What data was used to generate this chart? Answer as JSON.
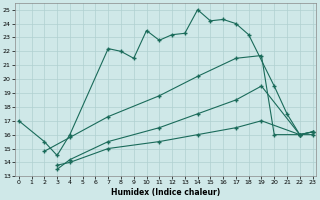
{
  "xlabel": "Humidex (Indice chaleur)",
  "bg_color": "#cfe8e8",
  "grid_color": "#b0d0d0",
  "line_color": "#1a6b5a",
  "line1_x": [
    0,
    2,
    3,
    4,
    7,
    8,
    9,
    10,
    11,
    12,
    13,
    14,
    15,
    16,
    17,
    18,
    20,
    21,
    22,
    23
  ],
  "line1_y": [
    17.0,
    15.5,
    14.5,
    16.0,
    22.2,
    22.0,
    21.5,
    23.5,
    22.8,
    23.2,
    23.3,
    25.0,
    24.2,
    24.3,
    24.0,
    23.2,
    19.5,
    17.5,
    16.0,
    16.2
  ],
  "line2_x": [
    2,
    4,
    7,
    11,
    14,
    17,
    19,
    20,
    22,
    23
  ],
  "line2_y": [
    14.8,
    15.8,
    17.3,
    18.8,
    20.2,
    21.5,
    21.7,
    16.0,
    16.0,
    16.2
  ],
  "line3_x": [
    3,
    4,
    7,
    11,
    14,
    17,
    19,
    22,
    23
  ],
  "line3_y": [
    13.5,
    14.2,
    15.5,
    16.5,
    17.5,
    18.5,
    19.5,
    16.0,
    16.0
  ],
  "line4_x": [
    3,
    4,
    7,
    11,
    14,
    17,
    19,
    22,
    23
  ],
  "line4_y": [
    13.8,
    14.0,
    15.0,
    15.5,
    16.0,
    16.5,
    17.0,
    16.0,
    16.2
  ],
  "xlim": [
    -0.3,
    23.3
  ],
  "ylim": [
    13.0,
    25.5
  ],
  "yticks": [
    13,
    14,
    15,
    16,
    17,
    18,
    19,
    20,
    21,
    22,
    23,
    24,
    25
  ],
  "xticks": [
    0,
    1,
    2,
    3,
    4,
    5,
    6,
    7,
    8,
    9,
    10,
    11,
    12,
    13,
    14,
    15,
    16,
    17,
    18,
    19,
    20,
    21,
    22,
    23
  ]
}
